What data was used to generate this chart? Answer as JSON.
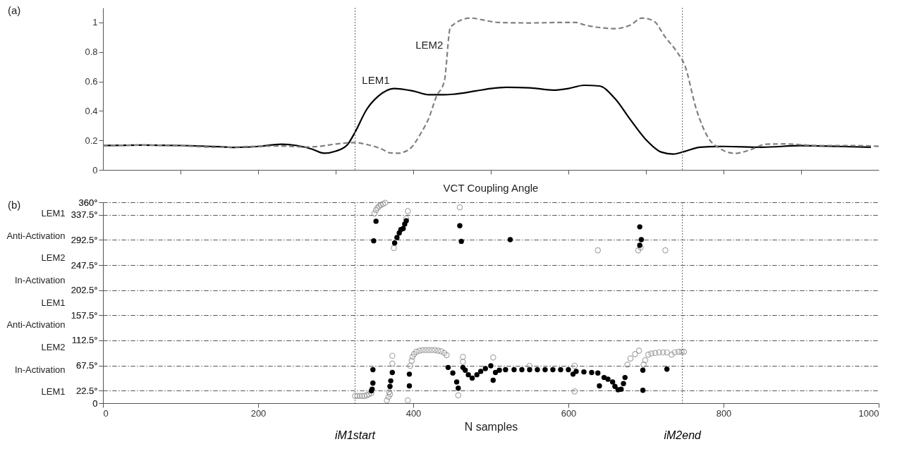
{
  "chart_data": [
    {
      "type": "line",
      "xlim": [
        0,
        1000
      ],
      "ylim": [
        0,
        1.1
      ],
      "xticks": [
        {
          "value": 100,
          "label": null
        },
        {
          "value": 200,
          "label": null
        },
        {
          "value": 300,
          "label": null
        },
        {
          "value": 400,
          "label": null
        },
        {
          "value": 500,
          "label": null
        },
        {
          "value": 600,
          "label": null
        },
        {
          "value": 700,
          "label": null
        },
        {
          "value": 800,
          "label": null
        },
        {
          "value": 900,
          "label": null
        }
      ],
      "yticks": [
        0,
        0.2,
        0.4,
        0.6,
        0.8,
        1
      ],
      "tick_labels": "y",
      "grid": false,
      "series": [
        {
          "name": null,
          "color": "#000000",
          "line_style": "solid",
          "x": [
            0,
            50,
            100,
            150,
            170,
            200,
            230,
            250,
            270,
            285,
            300,
            315,
            325,
            340,
            355,
            375,
            400,
            420,
            440,
            451,
            480,
            500,
            520,
            550,
            580,
            600,
            620,
            640,
            660,
            680,
            700,
            720,
            735,
            750,
            770,
            800,
            850,
            900,
            950,
            990
          ],
          "values": [
            0.165,
            0.168,
            0.165,
            0.157,
            0.152,
            0.159,
            0.174,
            0.165,
            0.14,
            0.113,
            0.127,
            0.17,
            0.256,
            0.41,
            0.5,
            0.552,
            0.535,
            0.51,
            0.51,
            0.513,
            0.535,
            0.552,
            0.56,
            0.557,
            0.541,
            0.552,
            0.574,
            0.569,
            0.484,
            0.34,
            0.205,
            0.12,
            0.107,
            0.125,
            0.154,
            0.159,
            0.154,
            0.164,
            0.159,
            0.154
          ]
        },
        {
          "name": null,
          "color": "#808080",
          "line_style": "dashed",
          "x": [
            0,
            50,
            100,
            150,
            200,
            230,
            260,
            280,
            300,
            325,
            340,
            360,
            370,
            380,
            395,
            410,
            420,
            430,
            440,
            448,
            474,
            490,
            510,
            550,
            590,
            610,
            620,
            640,
            660,
            680,
            695,
            710,
            725,
            740,
            750,
            765,
            780,
            795,
            815,
            835,
            855,
            880,
            920,
            960,
            1000
          ],
          "values": [
            0.165,
            0.168,
            0.163,
            0.153,
            0.16,
            0.162,
            0.155,
            0.16,
            0.175,
            0.185,
            0.172,
            0.14,
            0.115,
            0.113,
            0.14,
            0.25,
            0.35,
            0.5,
            0.6,
            0.97,
            1.03,
            1.017,
            1.0,
            0.997,
            1.0,
            1.0,
            0.985,
            0.966,
            0.958,
            0.983,
            1.03,
            1.01,
            0.9,
            0.8,
            0.71,
            0.41,
            0.22,
            0.146,
            0.112,
            0.137,
            0.174,
            0.176,
            0.165,
            0.165,
            0.16
          ]
        }
      ],
      "ref_lines": [
        {
          "axis": "x",
          "value": 325,
          "color": "#666666",
          "line_style": "dotted"
        },
        {
          "axis": "x",
          "value": 747,
          "color": "#666666",
          "line_style": "dotted"
        }
      ],
      "annotations": [
        "(a)",
        {
          "text": "LEM1",
          "x": 375,
          "y": 0.552
        },
        {
          "text": "LEM2",
          "x": 444,
          "y": 0.79
        }
      ]
    },
    {
      "type": "scatter",
      "title": "VCT Coupling Angle",
      "xlabel": "N samples",
      "xlim": [
        0,
        1000
      ],
      "ylim": [
        0,
        360
      ],
      "xticks": [
        0,
        200,
        400,
        600,
        800,
        1000
      ],
      "yticks": [
        0,
        {
          "value": 22.5,
          "label": "22.5°"
        },
        {
          "value": 67.5,
          "label": "67.5°"
        },
        {
          "value": 112.5,
          "label": "112.5°"
        },
        {
          "value": 157.5,
          "label": "157.5°"
        },
        {
          "value": 202.5,
          "label": "202.5°"
        },
        {
          "value": 247.5,
          "label": "247.5°"
        },
        {
          "value": 292.5,
          "label": "292.5°"
        },
        {
          "value": 337.5,
          "label": "337.5°"
        },
        {
          "value": 360,
          "label": "360°"
        }
      ],
      "y2_categories": [
        "LEM1",
        "Anti-Activation",
        "LEM2",
        "In-Activation",
        "LEM1",
        "Anti-Activation",
        "LEM2",
        "In-Activation",
        "LEM1"
      ],
      "grid": "y",
      "marker": "circle",
      "series": [
        {
          "name": null,
          "color": "#888888",
          "x": [
            325,
            328,
            331,
            334,
            337,
            340,
            343,
            346,
            350,
            352,
            354,
            356,
            358,
            361,
            364,
            366,
            368,
            370,
            369,
            373,
            373,
            375,
            391,
            393,
            393,
            396,
            398,
            399,
            401,
            404,
            408,
            412,
            416,
            420,
            424,
            428,
            432,
            436,
            440,
            443,
            460,
            458,
            464,
            464,
            503,
            550,
            608,
            608,
            638,
            676,
            680,
            686,
            691,
            690,
            693,
            697,
            699,
            703,
            707,
            712,
            717,
            722,
            727,
            733,
            737,
            742,
            746,
            749,
            725
          ],
          "values": [
            13,
            13,
            13,
            13,
            13,
            14,
            16,
            18,
            340,
            346,
            350,
            353,
            355,
            357,
            359,
            5,
            11,
            16,
            20,
            85,
            71,
            278,
            331,
            344,
            5,
            67,
            76,
            83,
            88,
            92,
            94,
            95,
            95,
            95,
            95,
            95,
            94,
            93,
            90,
            86,
            351,
            14,
            83,
            74,
            82,
            67,
            67,
            21,
            274,
            69,
            80,
            88,
            94,
            274,
            279,
            69,
            77,
            87,
            89,
            90,
            91,
            91,
            91,
            87,
            91,
            92,
            92,
            92,
            274
          ]
        },
        {
          "name": null,
          "color": "#000000",
          "x": [
            346,
            347,
            348,
            348,
            349,
            352,
            370,
            371,
            373,
            376,
            379,
            382,
            384,
            387,
            389,
            391,
            395,
            395,
            445,
            451,
            456,
            458,
            460,
            462,
            464,
            467,
            471,
            476,
            482,
            487,
            493,
            500,
            503,
            506,
            511,
            519,
            525,
            530,
            540,
            550,
            560,
            570,
            580,
            590,
            600,
            606,
            610,
            620,
            630,
            638,
            640,
            646,
            651,
            657,
            660,
            664,
            668,
            671,
            673,
            692,
            694,
            692,
            696,
            696,
            727
          ],
          "values": [
            22,
            25,
            36,
            60,
            291,
            326,
            30,
            40,
            55,
            287,
            297,
            305,
            311,
            313,
            321,
            327,
            52,
            31,
            64,
            54,
            38,
            27,
            318,
            290,
            64,
            59,
            51,
            45,
            51,
            57,
            62,
            67,
            41,
            55,
            59,
            60,
            293,
            60,
            60,
            60,
            60,
            60,
            60,
            60,
            60,
            52,
            57,
            56,
            55,
            54,
            31,
            46,
            43,
            38,
            30,
            24,
            25,
            35,
            46,
            316,
            293,
            283,
            59,
            23,
            61
          ]
        }
      ],
      "ref_lines": [
        {
          "axis": "x",
          "value": 325,
          "label": "iM1start",
          "color": "#666666",
          "line_style": "dotted"
        },
        {
          "axis": "x",
          "value": 747,
          "label": "iM2end",
          "color": "#666666",
          "line_style": "dotted"
        }
      ],
      "annotations": [
        "(b)"
      ]
    }
  ]
}
